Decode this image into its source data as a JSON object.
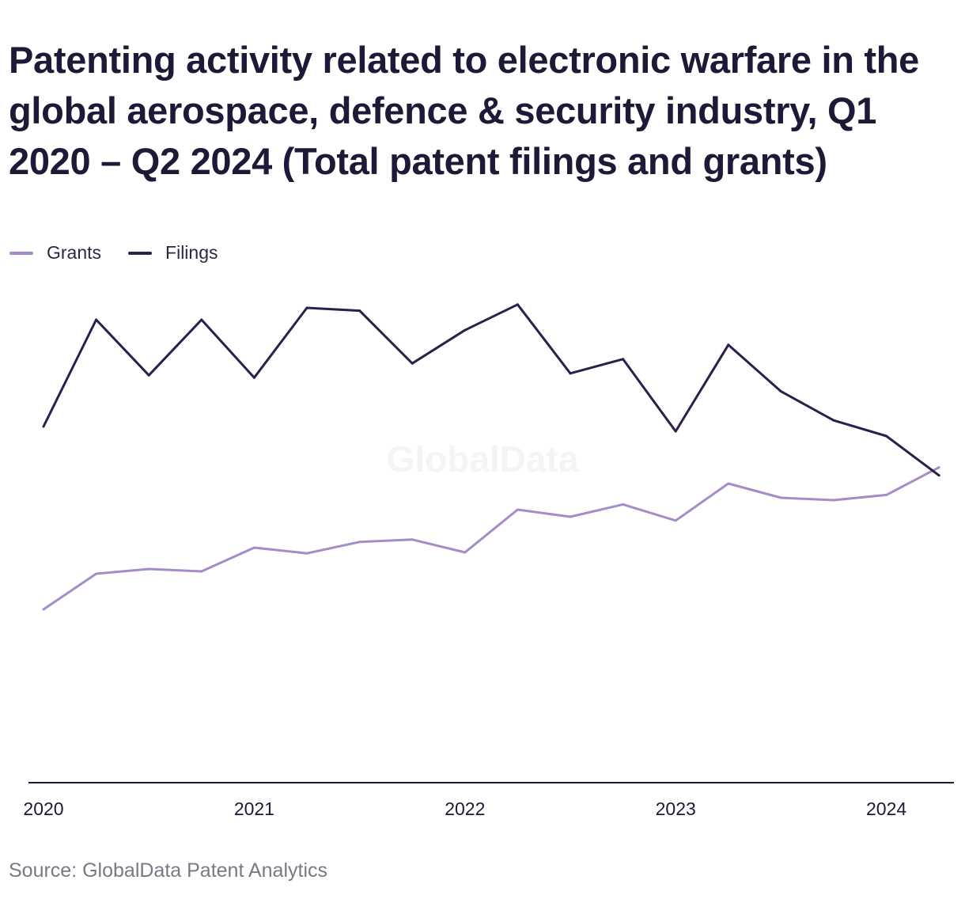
{
  "title": "Patenting activity related to electronic warfare in the global aerospace, defence & security industry, Q1 2020 – Q2 2024 (Total patent filings and grants)",
  "source": "Source: GlobalData Patent Analytics",
  "watermark": "GlobalData",
  "legend": {
    "items": [
      {
        "label": "Grants",
        "color": "#a58bc8"
      },
      {
        "label": "Filings",
        "color": "#2d1e4a"
      }
    ],
    "placement": "top-left"
  },
  "chart_data": {
    "type": "line",
    "title": "Patenting activity related to electronic warfare in the global aerospace, defence & security industry, Q1 2020 – Q2 2024 (Total patent filings and grants)",
    "xlabel": "",
    "ylabel": "",
    "x": [
      "2020-Q1",
      "2020-Q2",
      "2020-Q3",
      "2020-Q4",
      "2021-Q1",
      "2021-Q2",
      "2021-Q3",
      "2021-Q4",
      "2022-Q1",
      "2022-Q2",
      "2022-Q3",
      "2022-Q4",
      "2023-Q1",
      "2023-Q2",
      "2023-Q3",
      "2023-Q4",
      "2024-Q1",
      "2024-Q2"
    ],
    "x_tick_labels": [
      "2020",
      "2021",
      "2022",
      "2023",
      "2024"
    ],
    "ylim": [
      0,
      100
    ],
    "grid": false,
    "series": [
      {
        "name": "Grants",
        "color": "#a58bc8",
        "values": [
          36.5,
          44.0,
          45.0,
          44.5,
          49.5,
          48.3,
          50.7,
          51.2,
          48.5,
          57.5,
          56.0,
          58.6,
          55.2,
          63.0,
          60.0,
          59.5,
          60.6,
          66.4
        ]
      },
      {
        "name": "Filings",
        "color": "#2d1e4a",
        "values": [
          75.0,
          97.5,
          85.8,
          97.5,
          85.3,
          100.0,
          99.4,
          88.3,
          95.3,
          100.7,
          86.2,
          89.2,
          74.0,
          92.2,
          82.4,
          76.3,
          73.0,
          64.7
        ]
      }
    ]
  }
}
